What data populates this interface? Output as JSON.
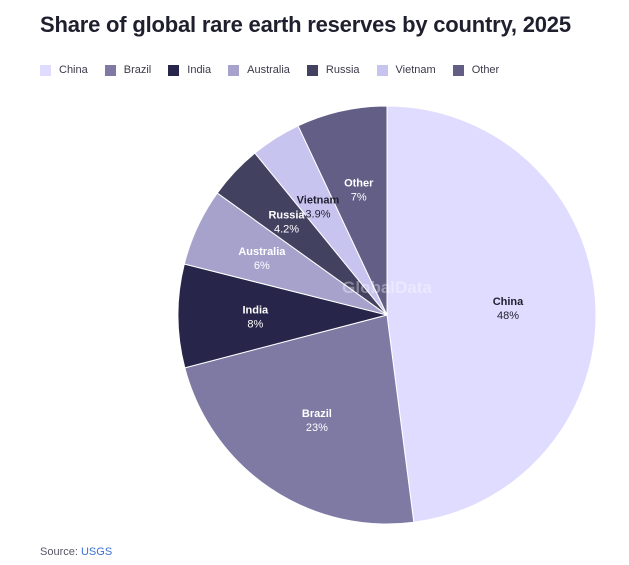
{
  "title": "Share of global rare earth reserves by country, 2025",
  "source": {
    "label": "Source:",
    "link_text": "USGS"
  },
  "watermark": "GlobalData",
  "chart_data": {
    "type": "pie",
    "title": "Share of global rare earth reserves by country, 2025",
    "start_angle_deg": 0,
    "direction": "clockwise",
    "legend_position": "top-left",
    "slices": [
      {
        "name": "China",
        "value": 48,
        "label": "48%",
        "color": "#e0dcff",
        "text_color": "#1f1f2e"
      },
      {
        "name": "Brazil",
        "value": 23,
        "label": "23%",
        "color": "#7e7aa4",
        "text_color": "#ffffff"
      },
      {
        "name": "India",
        "value": 8,
        "label": "8%",
        "color": "#27264a",
        "text_color": "#ffffff"
      },
      {
        "name": "Australia",
        "value": 6,
        "label": "6%",
        "color": "#a6a2cc",
        "text_color": "#ffffff"
      },
      {
        "name": "Russia",
        "value": 4.2,
        "label": "4.2%",
        "color": "#434160",
        "text_color": "#ffffff"
      },
      {
        "name": "Vietnam",
        "value": 3.9,
        "label": "3.9%",
        "color": "#c8c4f0",
        "text_color": "#1f1f2e"
      },
      {
        "name": "Other",
        "value": 7,
        "label": "7%",
        "color": "#625e86",
        "text_color": "#ffffff"
      }
    ]
  }
}
